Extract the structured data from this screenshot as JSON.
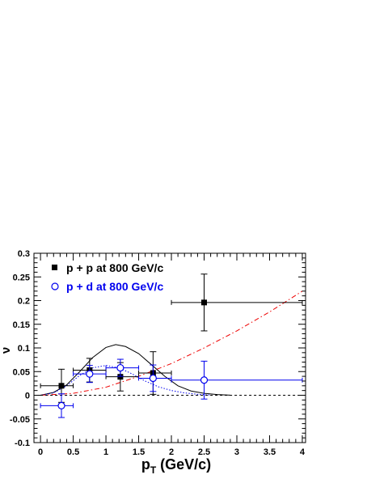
{
  "chart_data": {
    "type": "scatter",
    "xlabel_main": "p",
    "xlabel_sub": "T",
    "xlabel_rest": " (GeV/c)",
    "ylabel": "ν",
    "xlim": [
      -0.1,
      4.05
    ],
    "ylim": [
      -0.1,
      0.3
    ],
    "x_ticks": [
      {
        "value": 0,
        "label": "0"
      },
      {
        "value": 0.5,
        "label": "0.5"
      },
      {
        "value": 1,
        "label": "1"
      },
      {
        "value": 1.5,
        "label": "1.5"
      },
      {
        "value": 2,
        "label": "2"
      },
      {
        "value": 2.5,
        "label": "2.5"
      },
      {
        "value": 3,
        "label": "3"
      },
      {
        "value": 3.5,
        "label": "3.5"
      },
      {
        "value": 4,
        "label": "4"
      }
    ],
    "y_ticks": [
      {
        "value": -0.1,
        "label": "-0.1"
      },
      {
        "value": -0.05,
        "label": "-0.05"
      },
      {
        "value": 0,
        "label": "0"
      },
      {
        "value": 0.05,
        "label": "0.05"
      },
      {
        "value": 0.1,
        "label": "0.1"
      },
      {
        "value": 0.15,
        "label": "0.15"
      },
      {
        "value": 0.2,
        "label": "0.2"
      },
      {
        "value": 0.25,
        "label": "0.25"
      },
      {
        "value": 0.3,
        "label": "0.3"
      }
    ],
    "legend_position": "top-left",
    "series": [
      {
        "name": "p + p at 800 GeV/c",
        "marker": "filled-square",
        "color": "#000000",
        "points": [
          {
            "x": 0.32,
            "y": 0.02,
            "xerr_low": 0.32,
            "xerr_high": 0.18,
            "yerr": 0.035
          },
          {
            "x": 0.75,
            "y": 0.053,
            "xerr_low": 0.25,
            "xerr_high": 0.25,
            "yerr": 0.025
          },
          {
            "x": 1.22,
            "y": 0.039,
            "xerr_low": 0.22,
            "xerr_high": 0.28,
            "yerr": 0.03
          },
          {
            "x": 1.72,
            "y": 0.047,
            "xerr_low": 0.22,
            "xerr_high": 0.28,
            "yerr": 0.045
          },
          {
            "x": 2.5,
            "y": 0.196,
            "xerr_low": 0.5,
            "xerr_high": 1.5,
            "yerr": 0.06
          }
        ]
      },
      {
        "name": "p + d at 800 GeV/c",
        "marker": "open-circle",
        "color": "#0000ee",
        "points": [
          {
            "x": 0.32,
            "y": -0.022,
            "xerr_low": 0.32,
            "xerr_high": 0.18,
            "yerr": 0.025
          },
          {
            "x": 0.75,
            "y": 0.045,
            "xerr_low": 0.25,
            "xerr_high": 0.25,
            "yerr": 0.018
          },
          {
            "x": 1.22,
            "y": 0.058,
            "xerr_low": 0.22,
            "xerr_high": 0.28,
            "yerr": 0.018
          },
          {
            "x": 1.72,
            "y": 0.036,
            "xerr_low": 0.22,
            "xerr_high": 0.28,
            "yerr": 0.028
          },
          {
            "x": 2.5,
            "y": 0.032,
            "xerr_low": 0.5,
            "xerr_high": 1.5,
            "yerr": 0.04
          }
        ]
      }
    ],
    "curves": [
      {
        "style": "solid",
        "color": "#000000",
        "points": [
          [
            0,
            0
          ],
          [
            0.2,
            0.006
          ],
          [
            0.4,
            0.022
          ],
          [
            0.6,
            0.05
          ],
          [
            0.8,
            0.08
          ],
          [
            1.0,
            0.101
          ],
          [
            1.15,
            0.107
          ],
          [
            1.3,
            0.103
          ],
          [
            1.5,
            0.088
          ],
          [
            1.7,
            0.064
          ],
          [
            1.9,
            0.04
          ],
          [
            2.1,
            0.02
          ],
          [
            2.3,
            0.009
          ],
          [
            2.5,
            0.004
          ],
          [
            2.7,
            0.0015
          ],
          [
            2.9,
            0.0003
          ]
        ]
      },
      {
        "style": "dotted",
        "color": "#0000ee",
        "points": [
          [
            0,
            0
          ],
          [
            0.2,
            0.005
          ],
          [
            0.4,
            0.02
          ],
          [
            0.6,
            0.042
          ],
          [
            0.8,
            0.058
          ],
          [
            1.0,
            0.063
          ],
          [
            1.2,
            0.058
          ],
          [
            1.4,
            0.045
          ],
          [
            1.6,
            0.03
          ],
          [
            1.8,
            0.018
          ],
          [
            2.0,
            0.01
          ],
          [
            2.2,
            0.005
          ],
          [
            2.4,
            0.002
          ],
          [
            2.6,
            0.0005
          ]
        ]
      },
      {
        "style": "dashdot",
        "color": "#ee0000",
        "points": [
          [
            0,
            0
          ],
          [
            0.5,
            0.004
          ],
          [
            1.0,
            0.017
          ],
          [
            1.5,
            0.04
          ],
          [
            2.0,
            0.067
          ],
          [
            2.5,
            0.1
          ],
          [
            3.0,
            0.136
          ],
          [
            3.5,
            0.176
          ],
          [
            4.0,
            0.22
          ]
        ]
      },
      {
        "style": "dashed",
        "color": "#000000",
        "points": [
          [
            0,
            0
          ],
          [
            4.05,
            0
          ]
        ]
      }
    ]
  }
}
